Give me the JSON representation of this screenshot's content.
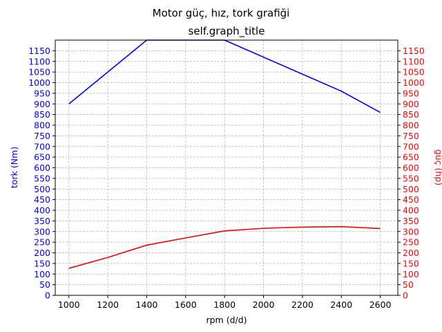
{
  "chart_data": {
    "type": "line",
    "suptitle": "Motor güç, hız, tork grafiği",
    "title": "self.graph_title",
    "xlabel": "rpm (d/d)",
    "ylabel_left": "tork (Nm)",
    "ylabel_right": "güç (hp)",
    "xlim": [
      930,
      2690
    ],
    "ylim": [
      0,
      1200
    ],
    "x_ticks": [
      1000,
      1200,
      1400,
      1600,
      1800,
      2000,
      2200,
      2400,
      2600
    ],
    "y_ticks": [
      0,
      50,
      100,
      150,
      200,
      250,
      300,
      350,
      400,
      450,
      500,
      550,
      600,
      650,
      700,
      750,
      800,
      850,
      900,
      950,
      1000,
      1050,
      1100,
      1150
    ],
    "grid": true,
    "colors": {
      "left": "#0000ff",
      "right": "#ff0000"
    },
    "series": [
      {
        "axis": "left",
        "color": "#0000ff",
        "x": [
          1000,
          1400,
          1800,
          2400,
          2600
        ],
        "values": [
          900,
          1200,
          1200,
          960,
          860
        ]
      },
      {
        "axis": "right",
        "color": "#ff0000",
        "x": [
          1000,
          1200,
          1400,
          1600,
          1800,
          2000,
          2200,
          2400,
          2600
        ],
        "values": [
          127,
          178,
          236,
          270,
          303,
          315,
          321,
          323,
          314
        ]
      }
    ]
  }
}
